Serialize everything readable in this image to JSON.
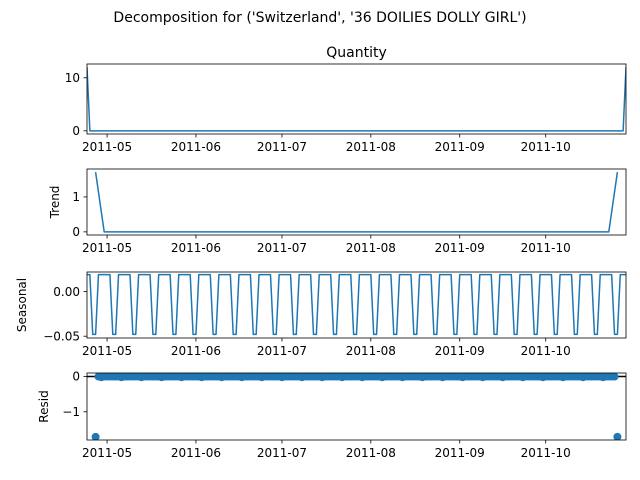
{
  "chart_data": {
    "type": "line",
    "title": "Decomposition for ('Switzerland', '36 DOILIES DOLLY GIRL')",
    "x_range": [
      "2011-04-24",
      "2011-10-29"
    ],
    "x_ticks": [
      "2011-05",
      "2011-06",
      "2011-07",
      "2011-08",
      "2011-09",
      "2011-10"
    ],
    "panels": [
      {
        "name": "quantity",
        "title": "Quantity",
        "ylabel": "",
        "style": "line",
        "ylim": [
          -0.6,
          12.6
        ],
        "y_ticks": [
          0,
          10
        ],
        "y_tick_labels": [
          "0",
          "10"
        ],
        "points": [
          [
            "2011-04-24",
            12
          ],
          [
            "2011-04-25",
            0
          ],
          [
            "2011-10-28",
            0
          ],
          [
            "2011-10-29",
            12
          ]
        ]
      },
      {
        "name": "trend",
        "title": "",
        "ylabel": "Trend",
        "style": "line",
        "ylim": [
          -0.09,
          1.8
        ],
        "y_ticks": [
          0,
          1
        ],
        "y_tick_labels": [
          "0",
          "1"
        ],
        "points": [
          [
            "2011-04-27",
            1.71
          ],
          [
            "2011-04-30",
            0
          ],
          [
            "2011-10-23",
            0
          ],
          [
            "2011-10-26",
            1.71
          ]
        ]
      },
      {
        "name": "seasonal",
        "title": "",
        "ylabel": "Seasonal",
        "style": "seasonal",
        "ylim": [
          -0.052,
          0.022
        ],
        "y_ticks": [
          0.0,
          -0.05
        ],
        "y_tick_labels": [
          "0.00",
          "−0.05"
        ],
        "start": "2011-04-24",
        "end": "2011-10-29",
        "pattern": [
          0.019,
          0.019,
          0.019,
          0.019,
          0.019,
          -0.048,
          -0.048
        ],
        "pattern_start_index": 3
      },
      {
        "name": "resid",
        "title": "",
        "ylabel": "Resid",
        "style": "scatter",
        "ylim": [
          -1.8,
          0.1
        ],
        "y_ticks": [
          0,
          -1
        ],
        "y_tick_labels": [
          "0",
          "−1"
        ],
        "zero_line": true,
        "start": "2011-04-27",
        "end": "2011-10-26",
        "base_value": 0.0,
        "dip_value": -0.02,
        "outliers": [
          [
            "2011-04-27",
            -1.71
          ],
          [
            "2011-10-26",
            -1.71
          ]
        ]
      }
    ],
    "line_color": "#1f77b4",
    "grid": false,
    "legend": "none"
  }
}
